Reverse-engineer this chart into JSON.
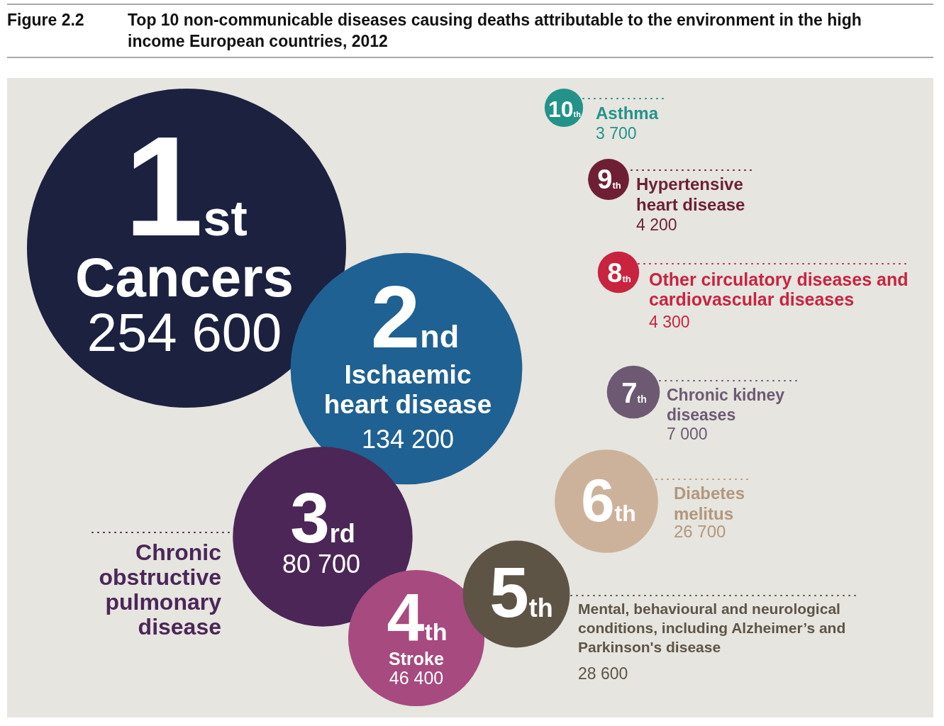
{
  "chart_data": {
    "type": "other",
    "title": "Top 10 non-communicable diseases causing deaths attributable to the environment in the high income European countries, 2012",
    "categories": [
      "Cancers",
      "Ischaemic heart disease",
      "Chronic obstructive pulmonary disease",
      "Stroke",
      "Mental, behavioural and neurological conditions, including Alzheimer’s and Parkinson's disease",
      "Diabetes melitus",
      "Chronic kidney diseases",
      "Other circulatory diseases and cardiovascular diseases",
      "Hypertensive heart disease",
      "Asthma"
    ],
    "values": [
      254600,
      134200,
      80700,
      46400,
      28600,
      26700,
      7000,
      4300,
      4200,
      3700
    ],
    "value_labels": [
      "254 600",
      "134 200",
      "80 700",
      "46 400",
      "28 600",
      "26 700",
      "7 000",
      "4 300",
      "4 200",
      "3 700"
    ],
    "colors": [
      "#1c2140",
      "#1f6192",
      "#4b2657",
      "#a74a7f",
      "#5e5446",
      "#cdb29b",
      "#6d5a72",
      "#c8243f",
      "#6e1f33",
      "#23938a"
    ],
    "annotations": [
      "Figure 2.2",
      {
        "text": "1st",
        "x": "Cancers"
      },
      {
        "text": "2nd",
        "x": "Ischaemic heart disease"
      },
      {
        "text": "3rd",
        "x": "Chronic obstructive pulmonary disease"
      },
      {
        "text": "4th",
        "x": "Stroke"
      },
      {
        "text": "5th",
        "x": "Mental, behavioural and neurological conditions, including Alzheimer’s and Parkinson's disease"
      },
      {
        "text": "6th",
        "x": "Diabetes melitus"
      },
      {
        "text": "7th",
        "x": "Chronic kidney diseases"
      },
      {
        "text": "8th",
        "x": "Other circulatory diseases and cardiovascular diseases"
      },
      {
        "text": "9th",
        "x": "Hypertensive heart disease"
      },
      {
        "text": "10th",
        "x": "Asthma"
      }
    ]
  }
}
